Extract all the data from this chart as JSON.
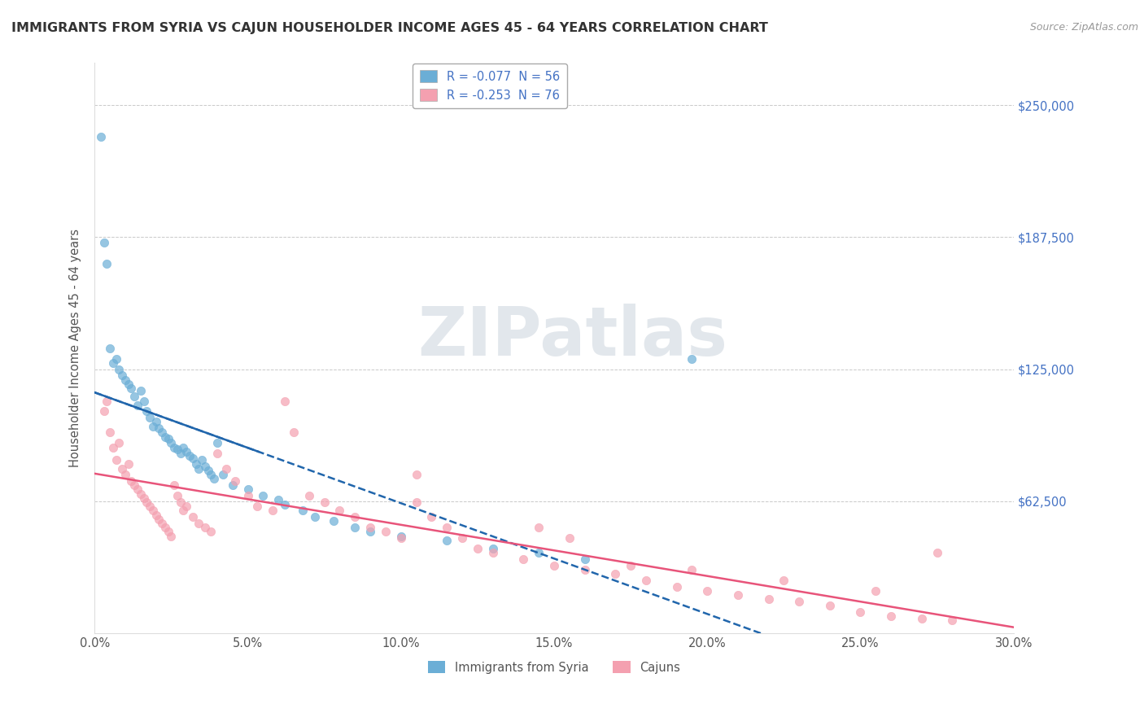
{
  "title": "IMMIGRANTS FROM SYRIA VS CAJUN HOUSEHOLDER INCOME AGES 45 - 64 YEARS CORRELATION CHART",
  "source": "Source: ZipAtlas.com",
  "ylabel": "Householder Income Ages 45 - 64 years",
  "xlim": [
    0.0,
    30.0
  ],
  "ylim": [
    0,
    270000
  ],
  "yticks": [
    0,
    62500,
    125000,
    187500,
    250000
  ],
  "ytick_labels": [
    "",
    "$62,500",
    "$125,000",
    "$187,500",
    "$250,000"
  ],
  "xticks": [
    0.0,
    5.0,
    10.0,
    15.0,
    20.0,
    25.0,
    30.0
  ],
  "xtick_labels": [
    "0.0%",
    "5.0%",
    "10.0%",
    "15.0%",
    "20.0%",
    "25.0%",
    "30.0%"
  ],
  "watermark": "ZIPatlas",
  "legend1_label": "R = -0.077  N = 56",
  "legend2_label": "R = -0.253  N = 76",
  "color_syria": "#6baed6",
  "color_cajun": "#f4a0b0",
  "trendline_syria_color": "#2166ac",
  "trendline_cajun_color": "#e8547a",
  "legend_syria": "Immigrants from Syria",
  "legend_cajun": "Cajuns",
  "syria_x": [
    0.2,
    0.3,
    0.4,
    0.5,
    0.6,
    0.7,
    0.8,
    0.9,
    1.0,
    1.1,
    1.2,
    1.3,
    1.4,
    1.5,
    1.6,
    1.7,
    1.8,
    1.9,
    2.0,
    2.1,
    2.2,
    2.3,
    2.4,
    2.5,
    2.6,
    2.7,
    2.8,
    2.9,
    3.0,
    3.1,
    3.2,
    3.3,
    3.4,
    3.5,
    3.6,
    3.7,
    3.8,
    3.9,
    4.0,
    4.2,
    4.5,
    5.0,
    5.5,
    6.0,
    6.2,
    6.8,
    7.2,
    7.8,
    8.5,
    9.0,
    10.0,
    11.5,
    13.0,
    14.5,
    16.0,
    19.5
  ],
  "syria_y": [
    235000,
    185000,
    175000,
    135000,
    128000,
    130000,
    125000,
    122000,
    120000,
    118000,
    116000,
    112000,
    108000,
    115000,
    110000,
    105000,
    102000,
    98000,
    100000,
    97000,
    95000,
    93000,
    92000,
    90000,
    88000,
    87000,
    85000,
    88000,
    86000,
    84000,
    83000,
    80000,
    78000,
    82000,
    79000,
    77000,
    75000,
    73000,
    90000,
    75000,
    70000,
    68000,
    65000,
    63000,
    61000,
    58000,
    55000,
    53000,
    50000,
    48000,
    46000,
    44000,
    40000,
    38000,
    35000,
    130000
  ],
  "cajun_x": [
    0.3,
    0.4,
    0.5,
    0.6,
    0.7,
    0.8,
    0.9,
    1.0,
    1.1,
    1.2,
    1.3,
    1.4,
    1.5,
    1.6,
    1.7,
    1.8,
    1.9,
    2.0,
    2.1,
    2.2,
    2.3,
    2.4,
    2.5,
    2.6,
    2.7,
    2.8,
    2.9,
    3.0,
    3.2,
    3.4,
    3.6,
    3.8,
    4.0,
    4.3,
    4.6,
    5.0,
    5.3,
    5.8,
    6.2,
    6.5,
    7.0,
    7.5,
    8.0,
    8.5,
    9.0,
    9.5,
    10.0,
    10.5,
    11.0,
    11.5,
    12.0,
    12.5,
    13.0,
    14.0,
    15.0,
    16.0,
    17.0,
    18.0,
    19.0,
    20.0,
    21.0,
    22.0,
    23.0,
    24.0,
    25.0,
    26.0,
    27.0,
    28.0,
    14.5,
    17.5,
    10.5,
    15.5,
    19.5,
    22.5,
    25.5,
    27.5
  ],
  "cajun_y": [
    105000,
    110000,
    95000,
    88000,
    82000,
    90000,
    78000,
    75000,
    80000,
    72000,
    70000,
    68000,
    66000,
    64000,
    62000,
    60000,
    58000,
    56000,
    54000,
    52000,
    50000,
    48000,
    46000,
    70000,
    65000,
    62000,
    58000,
    60000,
    55000,
    52000,
    50000,
    48000,
    85000,
    78000,
    72000,
    65000,
    60000,
    58000,
    110000,
    95000,
    65000,
    62000,
    58000,
    55000,
    50000,
    48000,
    45000,
    75000,
    55000,
    50000,
    45000,
    40000,
    38000,
    35000,
    32000,
    30000,
    28000,
    25000,
    22000,
    20000,
    18000,
    16000,
    15000,
    13000,
    10000,
    8000,
    7000,
    6000,
    50000,
    32000,
    62000,
    45000,
    30000,
    25000,
    20000,
    38000
  ]
}
